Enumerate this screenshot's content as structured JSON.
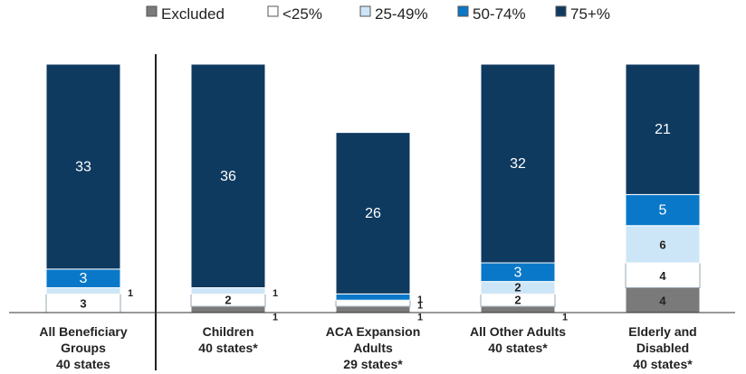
{
  "chart_data": {
    "type": "bar",
    "stacked": true,
    "legend_position": "top",
    "grid": false,
    "series": [
      {
        "name": "Excluded",
        "color": "#7a7a7a",
        "values": [
          0,
          1,
          1,
          1,
          4
        ]
      },
      {
        "name": "<25%",
        "color": "#ffffff",
        "values": [
          3,
          2,
          1,
          2,
          4
        ]
      },
      {
        "name": "25-49%",
        "color": "#cde6f7",
        "values": [
          1,
          1,
          0,
          2,
          6
        ]
      },
      {
        "name": "50-74%",
        "color": "#0a78c8",
        "values": [
          3,
          0,
          1,
          3,
          5
        ]
      },
      {
        "name": "75+%",
        "color": "#0f3a60",
        "values": [
          33,
          36,
          26,
          32,
          21
        ]
      }
    ],
    "categories": [
      [
        "All Beneficiary",
        "Groups",
        "40 states"
      ],
      [
        "Children",
        "40 states*"
      ],
      [
        "ACA Expansion",
        "Adults",
        "29 states*"
      ],
      [
        "All Other Adults",
        "40 states*"
      ],
      [
        "Elderly and",
        "Disabled",
        "40 states*"
      ]
    ],
    "ylim": [
      0,
      40
    ]
  }
}
